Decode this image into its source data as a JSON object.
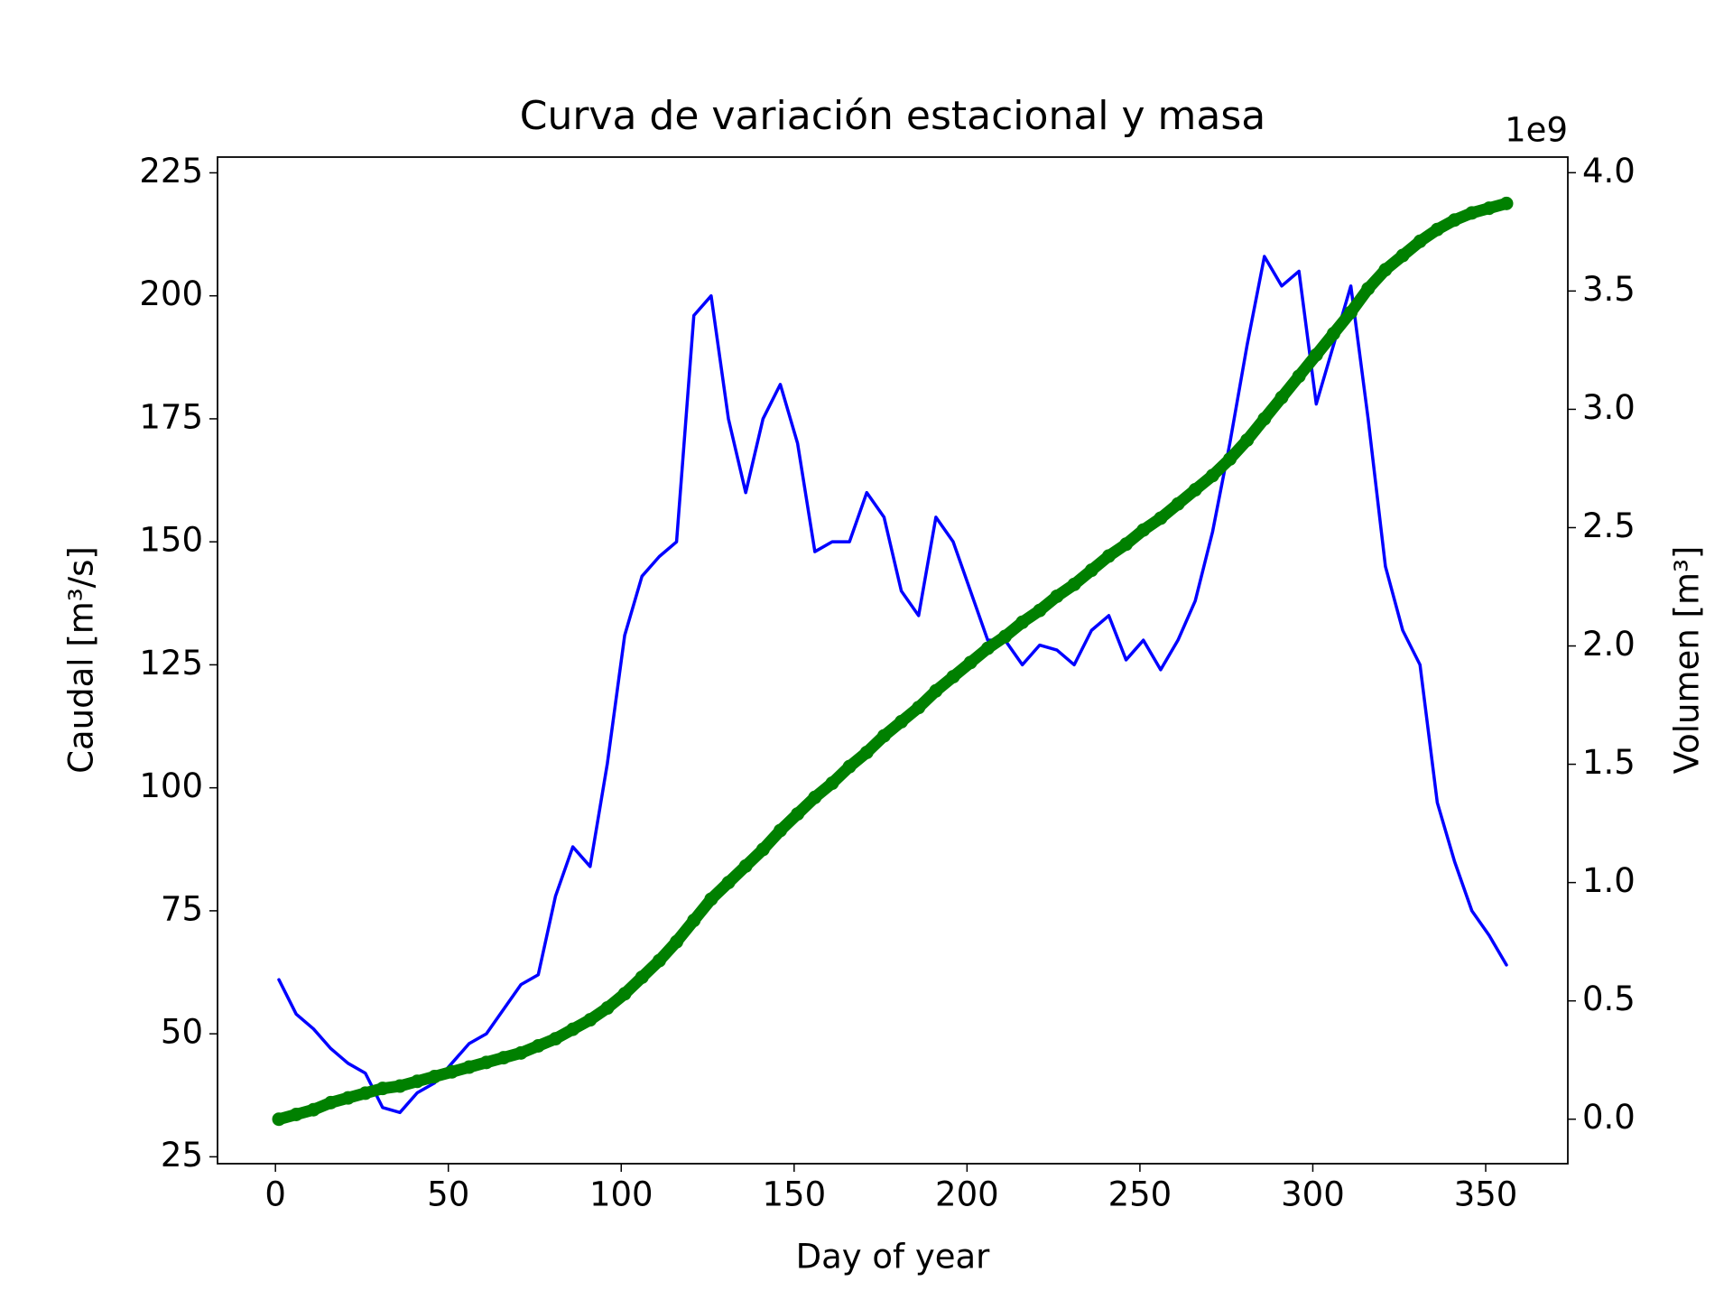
{
  "chart_data": {
    "type": "line",
    "title": "Curva de variación estacional y masa",
    "xlabel": "Day of year",
    "ylabel": "Caudal [m³/s]",
    "y2label": "Volumen [m³]",
    "y2_offset_label": "1e9",
    "x": [
      1,
      6,
      11,
      16,
      21,
      26,
      31,
      36,
      41,
      46,
      51,
      56,
      61,
      66,
      71,
      76,
      81,
      86,
      91,
      96,
      101,
      106,
      111,
      116,
      121,
      126,
      131,
      136,
      141,
      146,
      151,
      156,
      161,
      166,
      171,
      176,
      181,
      186,
      191,
      196,
      201,
      206,
      211,
      216,
      221,
      226,
      231,
      236,
      241,
      246,
      251,
      256,
      261,
      266,
      271,
      276,
      281,
      286,
      291,
      296,
      301,
      306,
      311,
      316,
      321,
      326,
      331,
      336,
      341,
      346,
      351,
      356
    ],
    "series": [
      {
        "color": "#0000ff",
        "values": [
          61,
          54,
          51,
          47,
          44,
          42,
          35,
          34,
          38,
          40,
          44,
          48,
          50,
          55,
          60,
          62,
          78,
          88,
          84,
          105,
          131,
          143,
          147,
          150,
          196,
          200,
          175,
          160,
          175,
          182,
          170,
          148,
          150,
          150,
          160,
          155,
          140,
          135,
          155,
          150,
          140,
          130,
          130,
          125,
          129,
          128,
          125,
          132,
          135,
          126,
          130,
          124,
          130,
          138,
          152,
          170,
          190,
          208,
          202,
          205,
          178,
          190,
          202,
          175,
          145,
          132,
          125,
          97,
          85,
          75,
          70,
          64
        ]
      },
      {
        "color": "#008000",
        "axis": "y2",
        "marker": "o",
        "values": [
          0.0,
          20000000.0,
          40000000.0,
          70000000.0,
          90000000.0,
          110000000.0,
          130000000.0,
          140000000.0,
          160000000.0,
          180000000.0,
          200000000.0,
          220000000.0,
          240000000.0,
          260000000.0,
          280000000.0,
          310000000.0,
          340000000.0,
          380000000.0,
          420000000.0,
          470000000.0,
          530000000.0,
          600000000.0,
          670000000.0,
          750000000.0,
          840000000.0,
          930000000.0,
          1000000000.0,
          1070000000.0,
          1140000000.0,
          1220000000.0,
          1290000000.0,
          1360000000.0,
          1420000000.0,
          1490000000.0,
          1550000000.0,
          1620000000.0,
          1680000000.0,
          1740000000.0,
          1810000000.0,
          1870000000.0,
          1930000000.0,
          1990000000.0,
          2040000000.0,
          2100000000.0,
          2150000000.0,
          2210000000.0,
          2260000000.0,
          2320000000.0,
          2380000000.0,
          2430000000.0,
          2490000000.0,
          2540000000.0,
          2600000000.0,
          2660000000.0,
          2720000000.0,
          2790000000.0,
          2870000000.0,
          2960000000.0,
          3050000000.0,
          3140000000.0,
          3230000000.0,
          3320000000.0,
          3410000000.0,
          3510000000.0,
          3590000000.0,
          3650000000.0,
          3710000000.0,
          3760000000.0,
          3800000000.0,
          3830000000.0,
          3850000000.0,
          3870000000.0
        ]
      }
    ],
    "xlim": [
      -16.75,
      373.75
    ],
    "xticks": [
      0,
      50,
      100,
      150,
      200,
      250,
      300,
      350
    ],
    "ylim": [
      23.6,
      228.2
    ],
    "yticks": [
      25,
      50,
      75,
      100,
      125,
      150,
      175,
      200,
      225
    ],
    "y2lim": [
      -188000000.0,
      4066000000.0
    ],
    "y2ticks": [
      {
        "value": 0,
        "label": "0.0"
      },
      {
        "value": 500000000.0,
        "label": "0.5"
      },
      {
        "value": 1000000000.0,
        "label": "1.0"
      },
      {
        "value": 1500000000.0,
        "label": "1.5"
      },
      {
        "value": 2000000000.0,
        "label": "2.0"
      },
      {
        "value": 2500000000.0,
        "label": "2.5"
      },
      {
        "value": 3000000000.0,
        "label": "3.0"
      },
      {
        "value": 3500000000.0,
        "label": "3.5"
      },
      {
        "value": 4000000000.0,
        "label": "4.0"
      }
    ],
    "grid": false
  }
}
